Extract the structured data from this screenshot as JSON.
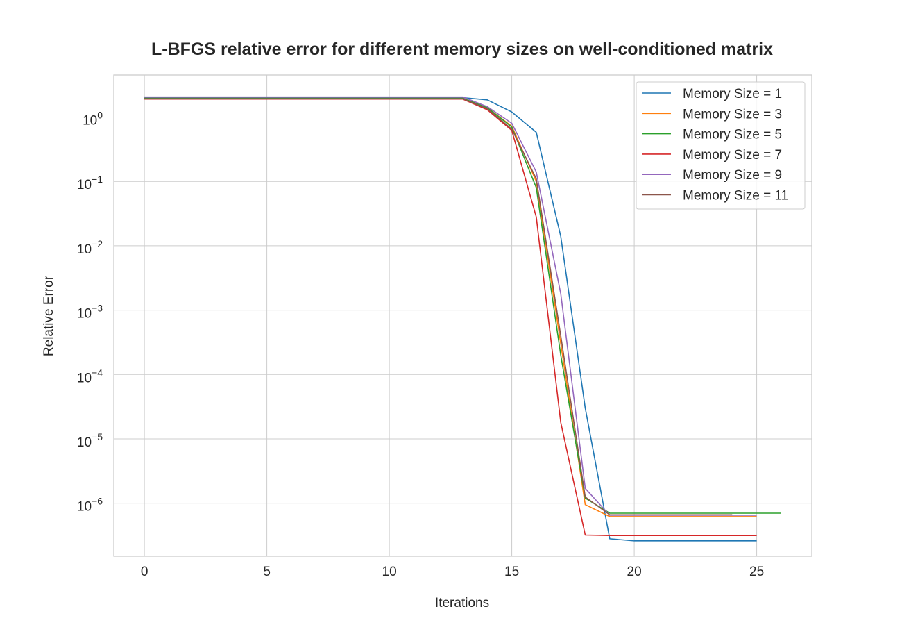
{
  "chart_data": {
    "type": "line",
    "title": "L-BFGS relative error for different memory sizes on well-conditioned matrix",
    "xlabel": "Iterations",
    "ylabel": "Relative Error",
    "xlim": [
      -1.25,
      27.25
    ],
    "ylim": [
      1.5e-07,
      4.5
    ],
    "yscale": "log",
    "grid": true,
    "legend_position": "top-right",
    "x_ticks": [
      0,
      5,
      10,
      15,
      20,
      25
    ],
    "y_ticks": [
      {
        "value": 1,
        "base": "10",
        "exponent": "0"
      },
      {
        "value": 0.1,
        "base": "10",
        "exponent": "−1"
      },
      {
        "value": 0.01,
        "base": "10",
        "exponent": "−2"
      },
      {
        "value": 0.001,
        "base": "10",
        "exponent": "−3"
      },
      {
        "value": 0.0001,
        "base": "10",
        "exponent": "−4"
      },
      {
        "value": 1e-05,
        "base": "10",
        "exponent": "−5"
      },
      {
        "value": 1e-06,
        "base": "10",
        "exponent": "−6"
      }
    ],
    "series": [
      {
        "name": "Memory Size = 1",
        "color": "#1f77b4",
        "x": [
          0,
          1,
          2,
          3,
          4,
          5,
          6,
          7,
          8,
          9,
          10,
          11,
          12,
          13,
          14,
          15,
          16,
          17,
          18,
          19,
          20,
          21,
          22,
          23,
          24,
          25
        ],
        "y": [
          2.0,
          2.0,
          2.0,
          2.0,
          2.0,
          2.0,
          2.0,
          2.0,
          2.0,
          2.0,
          2.0,
          2.0,
          2.0,
          2.0,
          1.85,
          1.2,
          0.58,
          0.014,
          3e-05,
          2.8e-07,
          2.6e-07,
          2.6e-07,
          2.6e-07,
          2.6e-07,
          2.6e-07,
          2.6e-07
        ]
      },
      {
        "name": "Memory Size = 3",
        "color": "#ff7f0e",
        "x": [
          0,
          1,
          2,
          3,
          4,
          5,
          6,
          7,
          8,
          9,
          10,
          11,
          12,
          13,
          14,
          15,
          16,
          17,
          18,
          19,
          20,
          21,
          22,
          23,
          24,
          25
        ],
        "y": [
          1.95,
          1.95,
          1.95,
          1.95,
          1.95,
          1.95,
          1.95,
          1.95,
          1.95,
          1.95,
          1.95,
          1.95,
          1.95,
          1.95,
          1.4,
          0.72,
          0.1,
          0.0003,
          9.5e-07,
          6.2e-07,
          6.2e-07,
          6.2e-07,
          6.2e-07,
          6.2e-07,
          6.2e-07,
          6.2e-07
        ]
      },
      {
        "name": "Memory Size = 5",
        "color": "#2ca02c",
        "x": [
          0,
          1,
          2,
          3,
          4,
          5,
          6,
          7,
          8,
          9,
          10,
          11,
          12,
          13,
          14,
          15,
          16,
          17,
          18,
          19,
          20,
          21,
          22,
          23,
          24,
          25,
          26
        ],
        "y": [
          1.95,
          1.95,
          1.95,
          1.95,
          1.95,
          1.95,
          1.95,
          1.95,
          1.95,
          1.95,
          1.95,
          1.95,
          1.95,
          1.95,
          1.4,
          0.7,
          0.08,
          0.0002,
          1.2e-06,
          7e-07,
          7e-07,
          7e-07,
          7e-07,
          7e-07,
          7e-07,
          7e-07,
          7e-07
        ]
      },
      {
        "name": "Memory Size = 7",
        "color": "#d62728",
        "x": [
          0,
          1,
          2,
          3,
          4,
          5,
          6,
          7,
          8,
          9,
          10,
          11,
          12,
          13,
          14,
          15,
          16,
          17,
          18,
          19,
          20,
          21,
          22,
          23,
          24,
          25
        ],
        "y": [
          1.9,
          1.9,
          1.9,
          1.9,
          1.9,
          1.9,
          1.9,
          1.9,
          1.9,
          1.9,
          1.9,
          1.9,
          1.9,
          1.9,
          1.3,
          0.62,
          0.028,
          1.8e-05,
          3.2e-07,
          3.15e-07,
          3.15e-07,
          3.15e-07,
          3.15e-07,
          3.15e-07,
          3.15e-07,
          3.15e-07
        ]
      },
      {
        "name": "Memory Size = 9",
        "color": "#9467bd",
        "x": [
          0,
          1,
          2,
          3,
          4,
          5,
          6,
          7,
          8,
          9,
          10,
          11,
          12,
          13,
          14,
          15,
          16,
          17,
          18,
          19,
          20,
          21,
          22,
          23,
          24,
          25
        ],
        "y": [
          2.05,
          2.05,
          2.05,
          2.05,
          2.05,
          2.05,
          2.05,
          2.05,
          2.05,
          2.05,
          2.05,
          2.05,
          2.05,
          2.05,
          1.45,
          0.8,
          0.14,
          0.0018,
          1.7e-06,
          6.5e-07,
          6.5e-07,
          6.5e-07,
          6.5e-07,
          6.5e-07,
          6.5e-07,
          6.5e-07
        ]
      },
      {
        "name": "Memory Size = 11",
        "color": "#8c564b",
        "x": [
          0,
          1,
          2,
          3,
          4,
          5,
          6,
          7,
          8,
          9,
          10,
          11,
          12,
          13,
          14,
          15,
          16,
          17,
          18,
          19,
          20,
          21,
          22,
          23,
          24
        ],
        "y": [
          1.92,
          1.92,
          1.92,
          1.92,
          1.92,
          1.92,
          1.92,
          1.92,
          1.92,
          1.92,
          1.92,
          1.92,
          1.92,
          1.92,
          1.35,
          0.65,
          0.11,
          0.0004,
          1.25e-06,
          6.6e-07,
          6.6e-07,
          6.6e-07,
          6.6e-07,
          6.6e-07,
          6.6e-07
        ]
      }
    ]
  }
}
